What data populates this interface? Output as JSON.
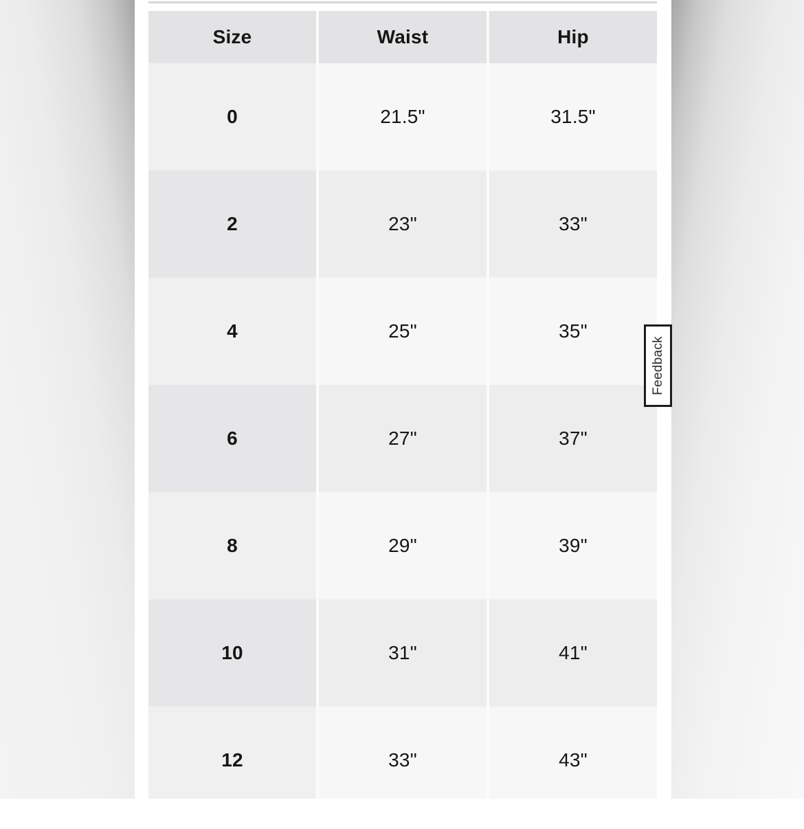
{
  "table": {
    "headers": [
      "Size",
      "Waist",
      "Hip"
    ],
    "rows": [
      {
        "size": "0",
        "waist": "21.5\"",
        "hip": "31.5\""
      },
      {
        "size": "2",
        "waist": "23\"",
        "hip": "33\""
      },
      {
        "size": "4",
        "waist": "25\"",
        "hip": "35\""
      },
      {
        "size": "6",
        "waist": "27\"",
        "hip": "37\""
      },
      {
        "size": "8",
        "waist": "29\"",
        "hip": "39\""
      },
      {
        "size": "10",
        "waist": "31\"",
        "hip": "41\""
      },
      {
        "size": "12",
        "waist": "33\"",
        "hip": "43\""
      }
    ]
  },
  "feedback": {
    "label": "Feedback"
  },
  "colors": {
    "header_bg": "#e3e3e5",
    "row_light_size": "#f0f0f1",
    "row_light_values": "#f7f7f8",
    "row_dark_size": "#e6e6e8",
    "row_dark_values": "#ededee",
    "text": "#161616",
    "feedback_border": "#1c1c1c"
  }
}
